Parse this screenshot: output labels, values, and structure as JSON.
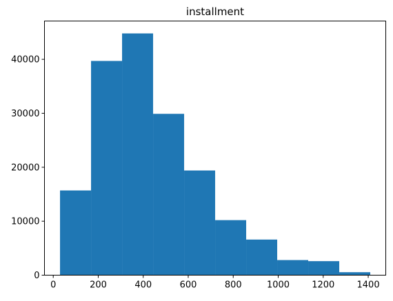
{
  "chart_data": {
    "type": "bar",
    "title": "installment",
    "xlabel": "",
    "ylabel": "",
    "bins": [
      {
        "x0": 30.12,
        "x1": 168.02,
        "count": 15700
      },
      {
        "x0": 168.02,
        "x1": 305.92,
        "count": 39700
      },
      {
        "x0": 305.92,
        "x1": 443.82,
        "count": 44800
      },
      {
        "x0": 443.82,
        "x1": 581.72,
        "count": 29900
      },
      {
        "x0": 581.72,
        "x1": 719.62,
        "count": 19400
      },
      {
        "x0": 719.62,
        "x1": 857.52,
        "count": 10200
      },
      {
        "x0": 857.52,
        "x1": 995.42,
        "count": 6600
      },
      {
        "x0": 995.42,
        "x1": 1133.32,
        "count": 2800
      },
      {
        "x0": 1133.32,
        "x1": 1271.22,
        "count": 2600
      },
      {
        "x0": 1271.22,
        "x1": 1409.12,
        "count": 550
      }
    ],
    "xlim": [
      -39,
      1478
    ],
    "ylim": [
      0,
      47100
    ],
    "xticks": [
      0,
      200,
      400,
      600,
      800,
      1000,
      1200,
      1400
    ],
    "yticks": [
      0,
      10000,
      20000,
      30000,
      40000
    ],
    "bar_color": "#1f77b4",
    "grid": false,
    "legend": "none"
  }
}
